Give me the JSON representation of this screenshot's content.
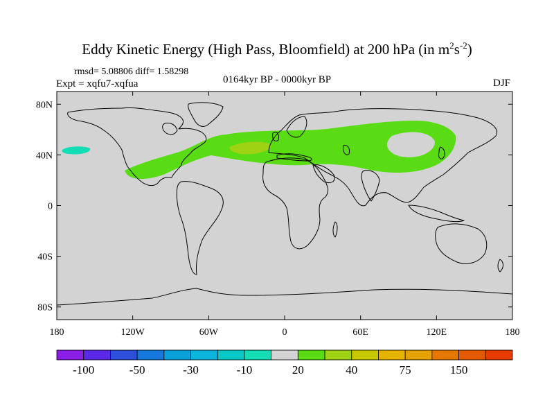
{
  "title": {
    "main": "Eddy Kinetic Energy (High Pass, Bloomfield) at 200 hPa (in m",
    "sup1": "2",
    "mid": "s",
    "sup2": "-2",
    "end": ")"
  },
  "stats": "rmsd= 5.08806 diff= 1.58298",
  "expt": "Expt = xqfu7-xqfua",
  "period": "0164kyr BP - 0000kyr BP",
  "season": "DJF",
  "map": {
    "x_range": [
      -180,
      180
    ],
    "y_range": [
      -90,
      90
    ],
    "lat_ticks": [
      {
        "value": 80,
        "label": "80N"
      },
      {
        "value": 40,
        "label": "40N"
      },
      {
        "value": 0,
        "label": "0"
      },
      {
        "value": -40,
        "label": "40S"
      },
      {
        "value": -80,
        "label": "80S"
      }
    ],
    "lon_ticks": [
      {
        "value": -180,
        "label": "180"
      },
      {
        "value": -120,
        "label": "120W"
      },
      {
        "value": -60,
        "label": "60W"
      },
      {
        "value": 0,
        "label": "0"
      },
      {
        "value": 60,
        "label": "60E"
      },
      {
        "value": 120,
        "label": "120E"
      },
      {
        "value": 180,
        "label": "180"
      }
    ],
    "background_color": "#d3d3d3"
  },
  "colorbar": {
    "colors": [
      "#8a1ee6",
      "#5a28e6",
      "#2d50dc",
      "#1478dc",
      "#0aa0dc",
      "#0ab4dc",
      "#0ac8c8",
      "#14dcb4",
      "#d3d3d3",
      "#5adc14",
      "#a0d214",
      "#c8c800",
      "#e6b400",
      "#e6a000",
      "#e67800",
      "#e65a00",
      "#e63c00"
    ],
    "labels": [
      {
        "boundary": 1,
        "text": "-100"
      },
      {
        "boundary": 3,
        "text": "-50"
      },
      {
        "boundary": 5,
        "text": "-30"
      },
      {
        "boundary": 7,
        "text": "-10"
      },
      {
        "boundary": 9,
        "text": "20"
      },
      {
        "boundary": 11,
        "text": "40"
      },
      {
        "boundary": 13,
        "text": "75"
      },
      {
        "boundary": 15,
        "text": "150"
      }
    ]
  }
}
